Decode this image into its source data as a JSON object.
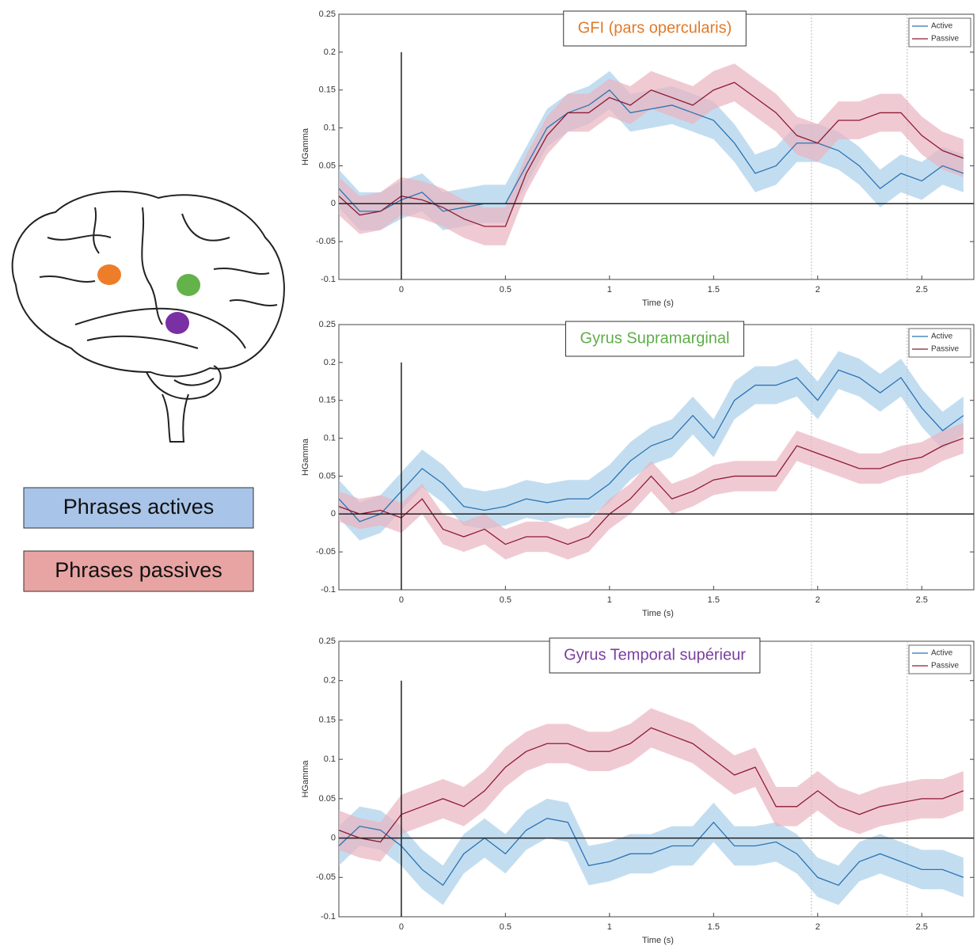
{
  "figure_legend": {
    "active": "Phrases actives",
    "passive": "Phrases passives"
  },
  "chart_data": [
    {
      "type": "line",
      "title": "GFI (pars opercularis)",
      "title_color": "#e07b2a",
      "x_label": "Time (s)",
      "y_label": "HGamma",
      "xlim": [
        -0.3,
        2.75
      ],
      "ylim": [
        -0.1,
        0.25
      ],
      "xticks": [
        0,
        0.5,
        1,
        1.5,
        2,
        2.5
      ],
      "yticks": [
        -0.1,
        -0.05,
        0,
        0.05,
        0.1,
        0.15,
        0.2,
        0.25
      ],
      "vlines": [
        1.97,
        2.43
      ],
      "legend": "top-right",
      "x": [
        -0.3,
        -0.2,
        -0.1,
        0,
        0.1,
        0.2,
        0.3,
        0.4,
        0.5,
        0.6,
        0.7,
        0.8,
        0.9,
        1.0,
        1.1,
        1.2,
        1.3,
        1.4,
        1.5,
        1.6,
        1.7,
        1.8,
        1.9,
        2.0,
        2.1,
        2.2,
        2.3,
        2.4,
        2.5,
        2.6,
        2.7
      ],
      "series": [
        {
          "name": "Active",
          "color": "#2a74b5",
          "band_color": "#a9cfea",
          "band": 0.025,
          "values": [
            0.02,
            -0.01,
            -0.01,
            0.005,
            0.015,
            -0.01,
            -0.005,
            0,
            0,
            0.05,
            0.1,
            0.12,
            0.13,
            0.15,
            0.12,
            0.125,
            0.13,
            0.12,
            0.11,
            0.08,
            0.04,
            0.05,
            0.08,
            0.08,
            0.07,
            0.05,
            0.02,
            0.04,
            0.03,
            0.05,
            0.04
          ]
        },
        {
          "name": "Passive",
          "color": "#8e1b35",
          "band_color": "#eab3bf",
          "band": 0.025,
          "values": [
            0.01,
            -0.015,
            -0.01,
            0.01,
            0.005,
            -0.005,
            -0.02,
            -0.03,
            -0.03,
            0.04,
            0.09,
            0.12,
            0.12,
            0.14,
            0.13,
            0.15,
            0.14,
            0.13,
            0.15,
            0.16,
            0.14,
            0.12,
            0.09,
            0.08,
            0.11,
            0.11,
            0.12,
            0.12,
            0.09,
            0.07,
            0.06
          ]
        }
      ]
    },
    {
      "type": "line",
      "title": "Gyrus Supramarginal",
      "title_color": "#5fae4a",
      "x_label": "Time (s)",
      "y_label": "HGamma",
      "xlim": [
        -0.3,
        2.75
      ],
      "ylim": [
        -0.1,
        0.25
      ],
      "xticks": [
        0,
        0.5,
        1,
        1.5,
        2,
        2.5
      ],
      "yticks": [
        -0.1,
        -0.05,
        0,
        0.05,
        0.1,
        0.15,
        0.2,
        0.25
      ],
      "vlines": [
        1.97,
        2.43
      ],
      "legend": "top-right",
      "x": [
        -0.3,
        -0.2,
        -0.1,
        0,
        0.1,
        0.2,
        0.3,
        0.4,
        0.5,
        0.6,
        0.7,
        0.8,
        0.9,
        1.0,
        1.1,
        1.2,
        1.3,
        1.4,
        1.5,
        1.6,
        1.7,
        1.8,
        1.9,
        2.0,
        2.1,
        2.2,
        2.3,
        2.4,
        2.5,
        2.6,
        2.7
      ],
      "series": [
        {
          "name": "Active",
          "color": "#2a74b5",
          "band_color": "#a9cfea",
          "band": 0.025,
          "values": [
            0.02,
            -0.01,
            0,
            0.03,
            0.06,
            0.04,
            0.01,
            0.005,
            0.01,
            0.02,
            0.015,
            0.02,
            0.02,
            0.04,
            0.07,
            0.09,
            0.1,
            0.13,
            0.1,
            0.15,
            0.17,
            0.17,
            0.18,
            0.15,
            0.19,
            0.18,
            0.16,
            0.18,
            0.14,
            0.11,
            0.13
          ]
        },
        {
          "name": "Passive",
          "color": "#8e1b35",
          "band_color": "#eab3bf",
          "band": 0.02,
          "values": [
            0.01,
            0,
            0.005,
            -0.005,
            0.02,
            -0.02,
            -0.03,
            -0.02,
            -0.04,
            -0.03,
            -0.03,
            -0.04,
            -0.03,
            0,
            0.02,
            0.05,
            0.02,
            0.03,
            0.045,
            0.05,
            0.05,
            0.05,
            0.09,
            0.08,
            0.07,
            0.06,
            0.06,
            0.07,
            0.075,
            0.09,
            0.1
          ]
        }
      ]
    },
    {
      "type": "line",
      "title": "Gyrus Temporal supérieur",
      "title_color": "#7b3fa0",
      "x_label": "Time (s)",
      "y_label": "HGamma",
      "xlim": [
        -0.3,
        2.75
      ],
      "ylim": [
        -0.1,
        0.25
      ],
      "xticks": [
        0,
        0.5,
        1,
        1.5,
        2,
        2.5
      ],
      "yticks": [
        -0.1,
        -0.05,
        0,
        0.05,
        0.1,
        0.15,
        0.2,
        0.25
      ],
      "vlines": [
        1.97,
        2.43
      ],
      "legend": "top-right",
      "x": [
        -0.3,
        -0.2,
        -0.1,
        0,
        0.1,
        0.2,
        0.3,
        0.4,
        0.5,
        0.6,
        0.7,
        0.8,
        0.9,
        1.0,
        1.1,
        1.2,
        1.3,
        1.4,
        1.5,
        1.6,
        1.7,
        1.8,
        1.9,
        2.0,
        2.1,
        2.2,
        2.3,
        2.4,
        2.5,
        2.6,
        2.7
      ],
      "series": [
        {
          "name": "Active",
          "color": "#2a74b5",
          "band_color": "#a9cfea",
          "band": 0.025,
          "values": [
            -0.01,
            0.015,
            0.01,
            -0.01,
            -0.04,
            -0.06,
            -0.02,
            0,
            -0.02,
            0.01,
            0.025,
            0.02,
            -0.035,
            -0.03,
            -0.02,
            -0.02,
            -0.01,
            -0.01,
            0.02,
            -0.01,
            -0.01,
            -0.005,
            -0.02,
            -0.05,
            -0.06,
            -0.03,
            -0.02,
            -0.03,
            -0.04,
            -0.04,
            -0.05
          ]
        },
        {
          "name": "Passive",
          "color": "#8e1b35",
          "band_color": "#eab3bf",
          "band": 0.025,
          "values": [
            0.01,
            0,
            -0.005,
            0.03,
            0.04,
            0.05,
            0.04,
            0.06,
            0.09,
            0.11,
            0.12,
            0.12,
            0.11,
            0.11,
            0.12,
            0.14,
            0.13,
            0.12,
            0.1,
            0.08,
            0.09,
            0.04,
            0.04,
            0.06,
            0.04,
            0.03,
            0.04,
            0.045,
            0.05,
            0.05,
            0.06
          ]
        }
      ]
    }
  ]
}
